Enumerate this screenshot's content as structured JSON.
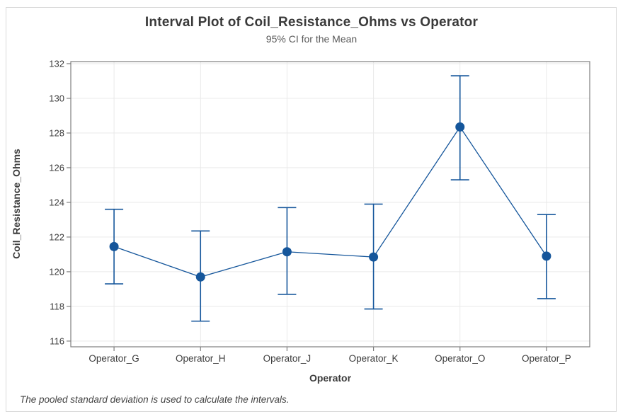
{
  "chart_data": {
    "type": "interval",
    "title": "Interval Plot of Coil_Resistance_Ohms vs Operator",
    "subtitle": "95% CI for the Mean",
    "xlabel": "Operator",
    "ylabel": "Coil_Resistance_Ohms",
    "footnote": "The pooled standard deviation is used to calculate the intervals.",
    "categories": [
      "Operator_G",
      "Operator_H",
      "Operator_J",
      "Operator_K",
      "Operator_O",
      "Operator_P"
    ],
    "series": [
      {
        "name": "Mean",
        "values": [
          121.45,
          119.7,
          121.15,
          120.85,
          128.35,
          120.9
        ]
      },
      {
        "name": "95% CI lower",
        "values": [
          119.3,
          117.15,
          118.7,
          117.85,
          125.3,
          118.45
        ]
      },
      {
        "name": "95% CI upper",
        "values": [
          123.6,
          122.35,
          123.7,
          123.9,
          131.3,
          123.3
        ]
      }
    ],
    "yticks": [
      116,
      118,
      120,
      122,
      124,
      126,
      128,
      130,
      132
    ],
    "ylim": [
      115.67,
      132.12
    ],
    "grid": true,
    "legend": false,
    "colors": {
      "series": "#15569B",
      "grid": "#e9e9e9",
      "frame": "#7f7f7f",
      "tick_text": "#3c3c3c",
      "title_text": "#3a3a3a"
    }
  }
}
